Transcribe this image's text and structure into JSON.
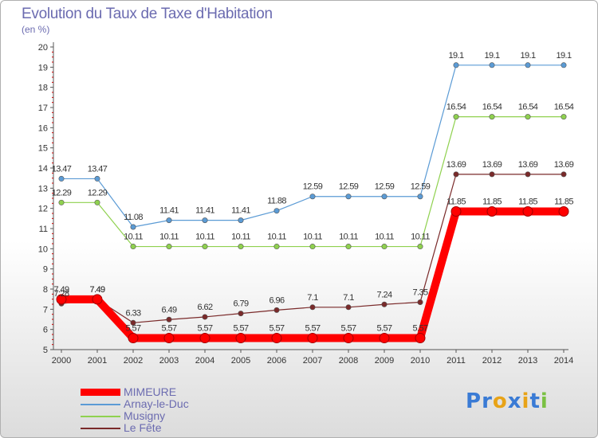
{
  "title": "Evolution du Taux de Taxe d'Habitation",
  "unit_label": "(en %)",
  "logo_text": "Proxiti",
  "chart_data": {
    "type": "line",
    "x": [
      "2000",
      "2001",
      "2002",
      "2003",
      "2004",
      "2005",
      "2006",
      "2007",
      "2008",
      "2009",
      "2010",
      "2011",
      "2012",
      "2013",
      "2014"
    ],
    "ylim": [
      5,
      20
    ],
    "yticks": [
      5,
      6,
      7,
      8,
      9,
      10,
      11,
      12,
      13,
      14,
      15,
      16,
      17,
      18,
      19,
      20
    ],
    "grid": false,
    "legend_position": "bottom-left",
    "series": [
      {
        "name": "MIMEURE",
        "color": "#ff0000",
        "values": [
          7.49,
          7.49,
          5.57,
          5.57,
          5.57,
          5.57,
          5.57,
          5.57,
          5.57,
          5.57,
          5.57,
          11.85,
          11.85,
          11.85,
          11.85
        ],
        "labels": [
          "7.49",
          "7.49",
          "5.57",
          "5.57",
          "5.57",
          "5.57",
          "5.57",
          "5.57",
          "5.57",
          "5.57",
          "5.57",
          "11.85",
          "11.85",
          "11.85",
          "11.85"
        ]
      },
      {
        "name": "Arnay-le-Duc",
        "color": "#5b9bd5",
        "values": [
          13.47,
          13.47,
          11.08,
          11.41,
          11.41,
          11.41,
          11.88,
          12.59,
          12.59,
          12.59,
          12.59,
          19.1,
          19.1,
          19.1,
          19.1
        ],
        "labels": [
          "13.47",
          "13.47",
          "11.08",
          "11.41",
          "11.41",
          "11.41",
          "11.88",
          "12.59",
          "12.59",
          "12.59",
          "12.59",
          "19.1",
          "19.1",
          "19.1",
          "19.1"
        ]
      },
      {
        "name": "Musigny",
        "color": "#8fd14f",
        "values": [
          12.29,
          12.29,
          10.11,
          10.11,
          10.11,
          10.11,
          10.11,
          10.11,
          10.11,
          10.11,
          10.11,
          16.54,
          16.54,
          16.54,
          16.54
        ],
        "labels": [
          "12.29",
          "12.29",
          "10.11",
          "10.11",
          "10.11",
          "10.11",
          "10.11",
          "10.11",
          "10.11",
          "10.11",
          "10.11",
          "16.54",
          "16.54",
          "16.54",
          "16.54"
        ]
      },
      {
        "name": "Le Fête",
        "color": "#7a2a2a",
        "values": [
          7.28,
          7.49,
          6.33,
          6.49,
          6.62,
          6.79,
          6.96,
          7.1,
          7.1,
          7.24,
          7.35,
          13.69,
          13.69,
          13.69,
          13.69
        ],
        "labels": [
          "7.28",
          "7.49",
          "6.33",
          "6.49",
          "6.62",
          "6.79",
          "6.96",
          "7.1",
          "7.1",
          "7.24",
          "7.35",
          "13.69",
          "13.69",
          "13.69",
          "13.69"
        ]
      }
    ]
  }
}
